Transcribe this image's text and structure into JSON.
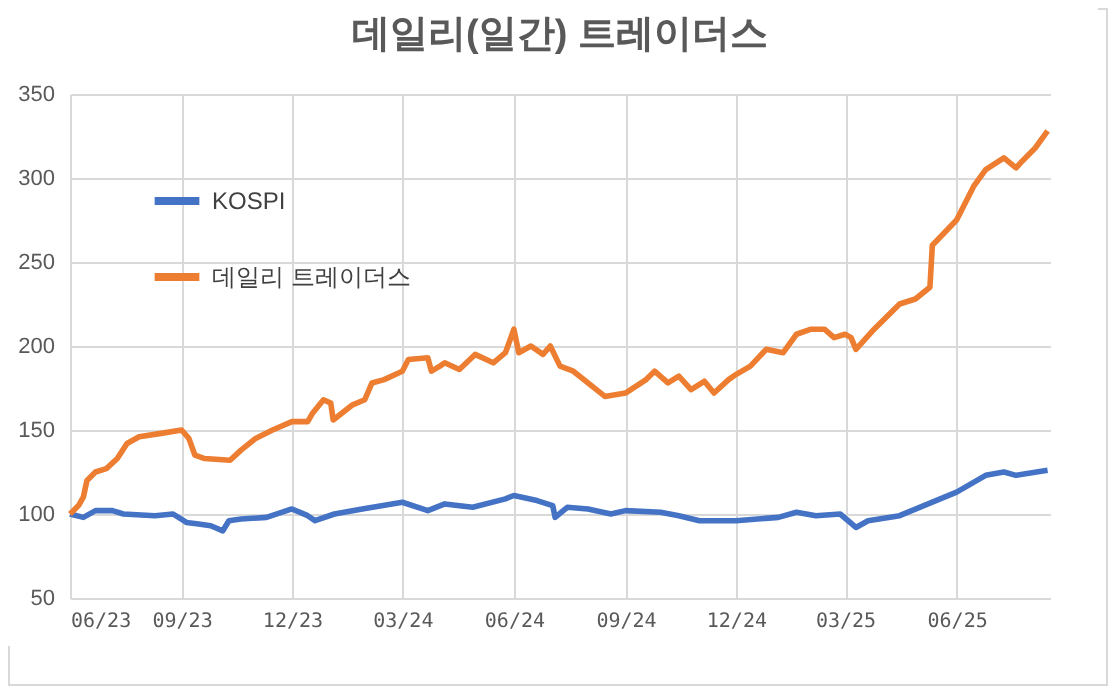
{
  "chart_data": {
    "type": "line",
    "title": "데일리(일간) 트레이더스",
    "xlim": [
      "2023-06-01",
      "2025-08-17"
    ],
    "xticks": [
      {
        "value": "2023-06-01",
        "label": "06/23"
      },
      {
        "value": "2023-09-01",
        "label": "09/23"
      },
      {
        "value": "2023-12-01",
        "label": "12/23"
      },
      {
        "value": "2024-03-01",
        "label": "03/24"
      },
      {
        "value": "2024-06-01",
        "label": "06/24"
      },
      {
        "value": "2024-09-01",
        "label": "09/24"
      },
      {
        "value": "2024-12-01",
        "label": "12/24"
      },
      {
        "value": "2025-03-01",
        "label": "03/25"
      },
      {
        "value": "2025-06-01",
        "label": "06/25"
      }
    ],
    "ylim": [
      50,
      350
    ],
    "yticks": [
      50,
      100,
      150,
      200,
      250,
      300,
      350
    ],
    "grid": true,
    "legend": "top left",
    "line_style": "solid",
    "marker": "none",
    "series": [
      {
        "name": "KOSPI",
        "color": "#4472c4",
        "x": [
          "2023-06-01",
          "2023-06-12",
          "2023-06-22",
          "2023-07-06",
          "2023-07-15",
          "2023-08-10",
          "2023-08-25",
          "2023-09-05",
          "2023-09-15",
          "2023-09-25",
          "2023-10-05",
          "2023-10-10",
          "2023-10-20",
          "2023-11-10",
          "2023-12-01",
          "2023-12-14",
          "2023-12-20",
          "2024-01-05",
          "2024-01-28",
          "2024-03-01",
          "2024-03-22",
          "2024-04-05",
          "2024-04-28",
          "2024-05-25",
          "2024-06-01",
          "2024-06-20",
          "2024-07-03",
          "2024-07-05",
          "2024-07-15",
          "2024-08-01",
          "2024-08-20",
          "2024-09-01",
          "2024-09-30",
          "2024-10-15",
          "2024-11-01",
          "2024-12-01",
          "2025-01-05",
          "2025-01-20",
          "2025-02-05",
          "2025-02-25",
          "2025-03-10",
          "2025-03-20",
          "2025-04-15",
          "2025-04-25",
          "2025-06-01",
          "2025-06-25",
          "2025-07-10",
          "2025-07-20",
          "2025-08-15"
        ],
        "values": [
          100,
          98,
          102,
          102,
          100,
          99,
          100,
          95,
          94,
          93,
          90,
          96,
          97,
          98,
          103,
          99,
          96,
          100,
          103,
          107,
          102,
          106,
          104,
          109,
          111,
          108,
          105,
          98,
          104,
          103,
          100,
          102,
          101,
          99,
          96,
          96,
          98,
          101,
          99,
          100,
          92,
          96,
          99,
          102,
          113,
          123,
          125,
          123,
          126
        ]
      },
      {
        "name": "데일리 트레이더스",
        "color": "#ed7d31",
        "x": [
          "2023-06-01",
          "2023-06-08",
          "2023-06-12",
          "2023-06-15",
          "2023-06-22",
          "2023-07-01",
          "2023-07-10",
          "2023-07-18",
          "2023-07-28",
          "2023-08-15",
          "2023-09-01",
          "2023-09-07",
          "2023-09-12",
          "2023-09-20",
          "2023-10-11",
          "2023-10-20",
          "2023-11-01",
          "2023-11-15",
          "2023-12-01",
          "2023-12-14",
          "2023-12-18",
          "2023-12-27",
          "2024-01-02",
          "2024-01-04",
          "2024-01-20",
          "2024-01-30",
          "2024-02-05",
          "2024-02-15",
          "2024-03-01",
          "2024-03-06",
          "2024-03-22",
          "2024-03-25",
          "2024-04-01",
          "2024-04-05",
          "2024-04-17",
          "2024-04-30",
          "2024-05-15",
          "2024-05-25",
          "2024-06-01",
          "2024-06-05",
          "2024-06-15",
          "2024-06-25",
          "2024-07-01",
          "2024-07-09",
          "2024-07-20",
          "2024-08-15",
          "2024-09-01",
          "2024-09-18",
          "2024-09-25",
          "2024-10-06",
          "2024-10-15",
          "2024-10-25",
          "2024-11-05",
          "2024-11-13",
          "2024-11-25",
          "2024-12-01",
          "2024-12-13",
          "2024-12-26",
          "2025-01-09",
          "2025-01-20",
          "2025-02-01",
          "2025-02-12",
          "2025-02-20",
          "2025-03-01",
          "2025-03-06",
          "2025-03-10",
          "2025-03-25",
          "2025-04-15",
          "2025-04-28",
          "2025-05-10",
          "2025-05-12",
          "2025-06-01",
          "2025-06-15",
          "2025-06-25",
          "2025-07-10",
          "2025-07-20",
          "2025-07-25",
          "2025-08-05",
          "2025-08-15"
        ],
        "values": [
          100,
          105,
          110,
          120,
          125,
          127,
          133,
          142,
          146,
          148,
          150,
          145,
          135,
          133,
          132,
          138,
          145,
          150,
          155,
          155,
          160,
          168,
          166,
          156,
          165,
          168,
          178,
          180,
          185,
          192,
          193,
          185,
          188,
          190,
          186,
          195,
          190,
          196,
          210,
          196,
          200,
          195,
          200,
          188,
          185,
          170,
          172,
          180,
          185,
          178,
          182,
          174,
          179,
          172,
          180,
          183,
          188,
          198,
          196,
          207,
          210,
          210,
          205,
          207,
          205,
          198,
          210,
          225,
          228,
          235,
          260,
          275,
          295,
          305,
          312,
          306,
          310,
          318,
          328
        ]
      }
    ]
  }
}
